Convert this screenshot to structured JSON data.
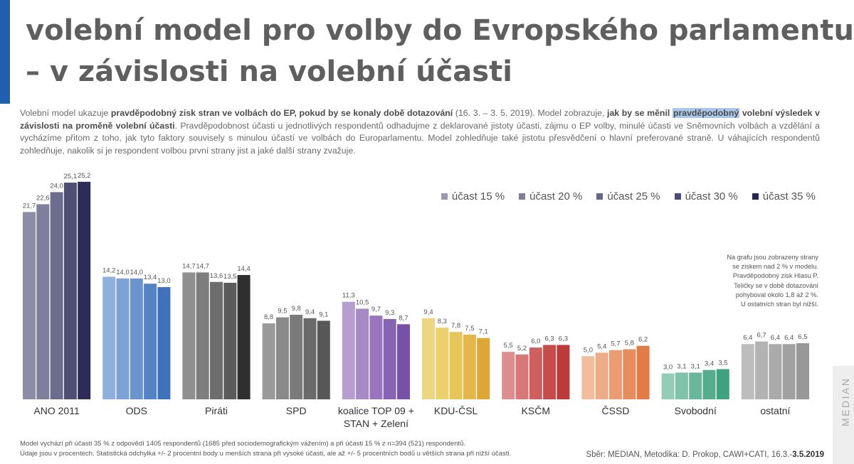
{
  "header": {
    "title_line1": "volební model pro volby do Evropského parlamentu",
    "title_line2": "– v závislosti na volební účasti"
  },
  "description": {
    "p1": "Volební model ukazuje ",
    "b1": "pravděpodobný zisk stran ve volbách do EP, pokud by se konaly době dotazování",
    "p2": " (16. 3. – 3. 5. 2019). Model zobrazuje, ",
    "b2": "jak by se měnil",
    "hl": "pravděpodobný",
    "b3": " volební výsledek v závislosti na proměně volební účasti",
    "p3": ". Pravděpodobnost účasti u jednotlivých respondentů odhadujme z deklarované jistoty účasti, zájmu o EP volby, minulé účasti ve Sněmovních volbách a vzdělání a vycházíme přitom z toho, jak tyto faktory souvisely s minulou účastí ve volbách do Europarlamentu. Model zohledňuje také jistotu přesvědčení o hlavní preferované straně. U váhajících respondentů zohledňuje, nakolik si je respondent volbou první strany jist a jaké další strany zvažuje."
  },
  "chart_data": {
    "type": "bar",
    "categories": [
      "ANO 2011",
      "ODS",
      "Piráti",
      "SPD",
      "koalice TOP 09 +\nSTAN + Zelení",
      "KDU-ČSL",
      "KSČM",
      "ČSSD",
      "Svobodní",
      "ostatní"
    ],
    "category_labels": [
      [
        "ANO 2011"
      ],
      [
        "ODS"
      ],
      [
        "Piráti"
      ],
      [
        "SPD"
      ],
      [
        "koalice TOP 09 +",
        "STAN + Zelení"
      ],
      [
        "KDU-ČSL"
      ],
      [
        "KSČM"
      ],
      [
        "ČSSD"
      ],
      [
        "Svobodní"
      ],
      [
        "ostatní"
      ]
    ],
    "series": [
      {
        "name": "účast 15 %",
        "values": [
          21.7,
          14.2,
          14.7,
          8.8,
          11.3,
          9.4,
          5.5,
          5.0,
          3.0,
          6.4
        ]
      },
      {
        "name": "účast 20 %",
        "values": [
          22.6,
          14.0,
          14.7,
          9.5,
          10.5,
          8.3,
          5.2,
          5.4,
          3.1,
          6.7
        ]
      },
      {
        "name": "účast 25 %",
        "values": [
          24.0,
          14.0,
          13.6,
          9.8,
          9.7,
          7.8,
          6.0,
          5.7,
          3.1,
          6.4
        ]
      },
      {
        "name": "účast 30 %",
        "values": [
          25.1,
          13.4,
          13.5,
          9.4,
          9.3,
          7.5,
          6.3,
          5.8,
          3.4,
          6.4
        ]
      },
      {
        "name": "účast 35 %",
        "values": [
          25.2,
          13.0,
          14.4,
          9.1,
          8.7,
          7.1,
          6.3,
          6.2,
          3.5,
          6.5
        ]
      }
    ],
    "value_labels": [
      [
        "21,7",
        "22,6",
        "24,0",
        "25,1",
        "25,2"
      ],
      [
        "14,2",
        "14,0",
        "14,0",
        "13,4",
        "13,0"
      ],
      [
        "14,7",
        "14,7",
        "13,6",
        "13,5",
        "14,4"
      ],
      [
        "8,8",
        "9,5",
        "9,8",
        "9,4",
        "9,1"
      ],
      [
        "11,3",
        "10,5",
        "9,7",
        "9,3",
        "8,7"
      ],
      [
        "9,4",
        "8,3",
        "7,8",
        "7,5",
        "7,1"
      ],
      [
        "5,5",
        "5,2",
        "6,0",
        "6,3",
        "6,3"
      ],
      [
        "5,0",
        "5,4",
        "5,7",
        "5,8",
        "6,2"
      ],
      [
        "3,0",
        "3,1",
        "3,1",
        "3,4",
        "3,5"
      ],
      [
        "6,4",
        "6,7",
        "6,4",
        "6,4",
        "6,5"
      ]
    ],
    "legend_colors": [
      "#9999ad",
      "#80809c",
      "#66668a",
      "#4c4c78",
      "#262655"
    ],
    "party_colors": [
      [
        "#8c8ca6",
        "#7f7f9c",
        "#6c6c8e",
        "#4f4f76",
        "#2c2c58"
      ],
      [
        "#8eb0dc",
        "#7da2d6",
        "#6a94ce",
        "#5584c6",
        "#3e72bd"
      ],
      [
        "#8f8f8f",
        "#7e7e7e",
        "#6d6d6d",
        "#5b5b5b",
        "#2f2f2f"
      ],
      [
        "#9a9a9a",
        "#8a8a8a",
        "#7a7a7a",
        "#6a6a6a",
        "#575757"
      ],
      [
        "#b79ed0",
        "#a789c6",
        "#9776bd",
        "#8763b3",
        "#7750a8"
      ],
      [
        "#ecd67f",
        "#ecd06c",
        "#e8c559",
        "#e4b847",
        "#dea637"
      ],
      [
        "#dc8e8e",
        "#d77777",
        "#cf5e5e",
        "#c84b4b",
        "#bd3a3a"
      ],
      [
        "#f1bd9d",
        "#eeac86",
        "#eb9c70",
        "#e78c5b",
        "#e27b45"
      ],
      [
        "#93cdb7",
        "#7fc3aa",
        "#6ab89c",
        "#55ad8e",
        "#3ea17f"
      ],
      [
        "#bdbdbd",
        "#b3b3b3",
        "#aaaaaa",
        "#a1a1a1",
        "#989898"
      ]
    ],
    "xlabel": "",
    "ylabel": "",
    "grid": false,
    "legend_position": "top-right"
  },
  "note": {
    "line1": "Na grafu jsou zobrazeny strany",
    "line2": "se ziskem nad 2 % v modelu.",
    "line3": "Pravděpodobný zisk Hlasu P.",
    "line4": "Teličky se v době dotazování",
    "line5": "pohyboval okolo 1,8 až 2 %.",
    "line6": "U ostatních stran byl nižší."
  },
  "footer": {
    "line1": "Model vychází při účasti 35 % z odpovědí 1405 respondentů (1685 před sociodemografickým vážením) a při účasti 15 % z n=394 (521) respondentů.",
    "line2": "Údaje jsou v procentech. Statistická odchylka +/- 2 procentní body u menších strana při vysoké účasti, ale až +/- 5 procentních bodů u větších strana při nižší účasti."
  },
  "source": {
    "prefix": "Sběr: MEDIAN, Metodika: D. Prokop, CAWI+CATI, 16.3.-",
    "date_bold": "3.5.2019"
  },
  "watermark": "MEDIAN"
}
